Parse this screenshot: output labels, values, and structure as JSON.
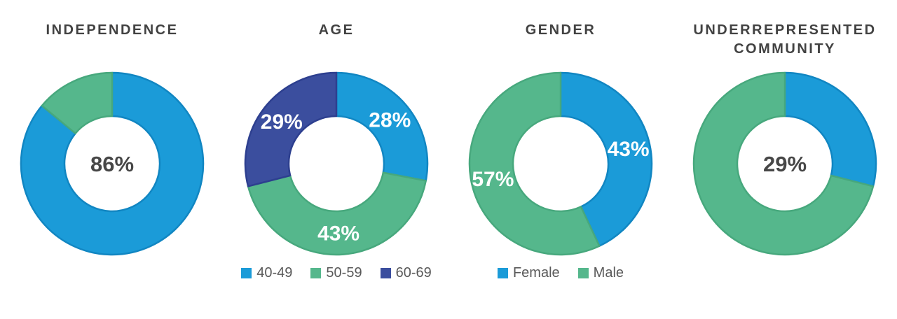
{
  "page": {
    "background": "#ffffff",
    "title_text_color": "#424242",
    "legend_text_color": "#595959",
    "slice_label_color": "#ffffff",
    "center_label_color": "#474747"
  },
  "colors": {
    "blue": "#1b9bd8",
    "blue_stroke": "#1186c2",
    "green": "#55b78c",
    "green_stroke": "#47a87d",
    "navy": "#3b4e9e",
    "navy_stroke": "#2d3f8f"
  },
  "chart_data": [
    {
      "type": "pie",
      "subtype": "donut",
      "title": "INDEPENDENCE",
      "center_label": "86%",
      "slices": [
        {
          "value": 86,
          "label": "",
          "color": "#1b9bd8",
          "stroke": "#1186c2"
        },
        {
          "value": 14,
          "label": "",
          "color": "#55b78c",
          "stroke": "#47a87d"
        }
      ],
      "legend": []
    },
    {
      "type": "pie",
      "subtype": "donut",
      "title": "AGE",
      "center_label": "",
      "slices": [
        {
          "value": 28,
          "label": "28%",
          "color": "#1b9bd8",
          "stroke": "#1186c2"
        },
        {
          "value": 43,
          "label": "43%",
          "color": "#55b78c",
          "stroke": "#47a87d"
        },
        {
          "value": 29,
          "label": "29%",
          "color": "#3b4e9e",
          "stroke": "#2d3f8f"
        }
      ],
      "legend": [
        {
          "label": "40-49",
          "color": "#1b9bd8"
        },
        {
          "label": "50-59",
          "color": "#55b78c"
        },
        {
          "label": "60-69",
          "color": "#3b4e9e"
        }
      ]
    },
    {
      "type": "pie",
      "subtype": "donut",
      "title": "GENDER",
      "center_label": "",
      "slices": [
        {
          "value": 43,
          "label": "43%",
          "color": "#1b9bd8",
          "stroke": "#1186c2"
        },
        {
          "value": 57,
          "label": "57%",
          "color": "#55b78c",
          "stroke": "#47a87d"
        }
      ],
      "legend": [
        {
          "label": "Female",
          "color": "#1b9bd8"
        },
        {
          "label": "Male",
          "color": "#55b78c"
        }
      ]
    },
    {
      "type": "pie",
      "subtype": "donut",
      "title": "UNDERREPRESENTED COMMUNITY",
      "center_label": "29%",
      "slices": [
        {
          "value": 29,
          "label": "",
          "color": "#1b9bd8",
          "stroke": "#1186c2"
        },
        {
          "value": 71,
          "label": "",
          "color": "#55b78c",
          "stroke": "#47a87d"
        }
      ],
      "legend": []
    }
  ]
}
